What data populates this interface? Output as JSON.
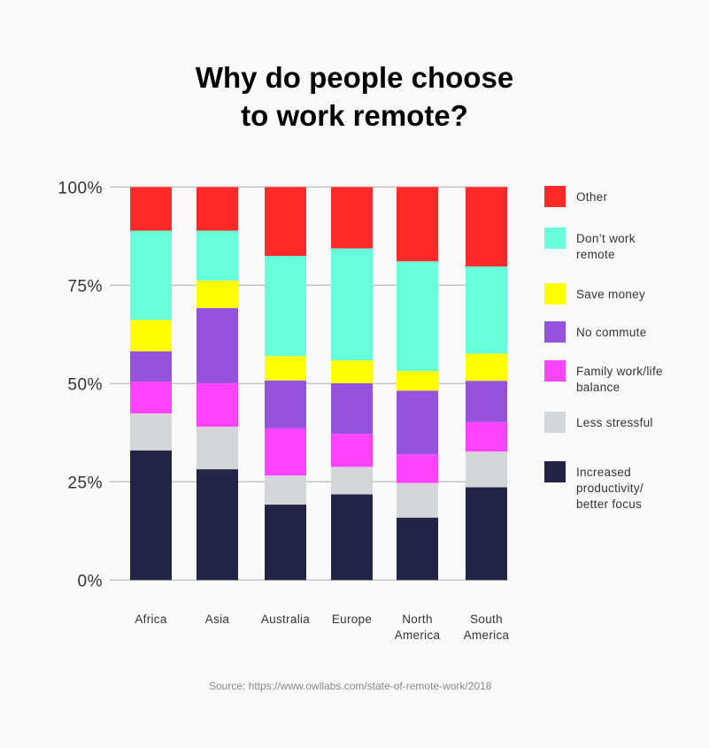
{
  "chart_data": {
    "type": "bar",
    "stacked": true,
    "title_lines": [
      "Why do people choose",
      "to work remote?"
    ],
    "source": "Source: https://www.owllabs.com/state-of-remote-work/2018",
    "categories": [
      [
        "Africa"
      ],
      [
        "Asia"
      ],
      [
        "Australia"
      ],
      [
        "Europe"
      ],
      [
        "North",
        "America"
      ],
      [
        "South",
        "America"
      ]
    ],
    "y_ticks": [
      "0%",
      "25%",
      "50%",
      "75%",
      "100%"
    ],
    "y_tick_values": [
      0,
      25,
      50,
      75,
      100
    ],
    "ylim": [
      0,
      100
    ],
    "grid": true,
    "legend_placement": "right",
    "series": [
      {
        "name": "Increased productivity/ better focus",
        "legend_lines": [
          "Increased",
          "productivity/",
          "better focus"
        ],
        "color": "#212444",
        "values": [
          33.0,
          28.2,
          19.2,
          21.8,
          15.9,
          23.6
        ]
      },
      {
        "name": "Less stressful",
        "legend_lines": [
          "Less stressful"
        ],
        "color": "#d5d6da",
        "values": [
          9.4,
          10.8,
          7.4,
          7.0,
          8.8,
          9.1
        ]
      },
      {
        "name": "Family work/life balance",
        "legend_lines": [
          "Family work/life",
          "balance"
        ],
        "color": "#ff44ff",
        "values": [
          8.1,
          11.1,
          12.0,
          8.4,
          7.3,
          7.5
        ]
      },
      {
        "name": "No commute",
        "legend_lines": [
          "No commute"
        ],
        "color": "#9552dd",
        "values": [
          7.7,
          19.1,
          12.2,
          12.9,
          16.2,
          10.5
        ]
      },
      {
        "name": "Save money",
        "legend_lines": [
          "Save money"
        ],
        "color": "#ffff00",
        "values": [
          8.0,
          7.0,
          6.2,
          5.8,
          5.0,
          6.9
        ]
      },
      {
        "name": "Don't work remote",
        "legend_lines": [
          "Don’t work",
          "remote"
        ],
        "color": "#68ffdb",
        "values": [
          22.7,
          12.7,
          25.5,
          28.5,
          27.9,
          22.2
        ]
      },
      {
        "name": "Other",
        "legend_lines": [
          "Other"
        ],
        "color": "#ff2a2a",
        "values": [
          11.1,
          11.1,
          17.5,
          15.6,
          18.9,
          20.2
        ]
      }
    ]
  }
}
